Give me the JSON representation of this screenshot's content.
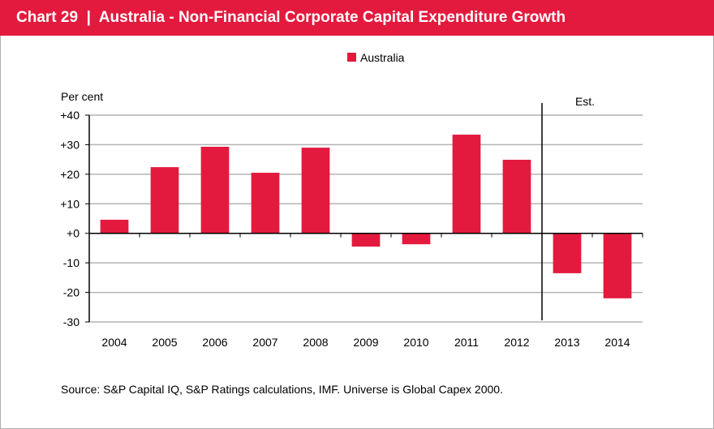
{
  "header": {
    "title": "Chart 29  |  Australia - Non-Financial Corporate Capital Expenditure Growth"
  },
  "chart_data": {
    "type": "bar",
    "title": "Australia - Non-Financial Corporate Capital Expenditure Growth",
    "ylabel": "Per cent",
    "xlabel": "",
    "categories": [
      "2004",
      "2005",
      "2006",
      "2007",
      "2008",
      "2009",
      "2010",
      "2011",
      "2012",
      "2013",
      "2014"
    ],
    "series": [
      {
        "name": "Australia",
        "values": [
          4.6,
          22.4,
          29.3,
          20.5,
          29.0,
          -4.5,
          -3.7,
          33.4,
          24.9,
          -13.5,
          -22.0
        ],
        "color": "#e31a3e"
      }
    ],
    "ylim": [
      -30,
      40
    ],
    "yticks": [
      40,
      30,
      20,
      10,
      0,
      -10,
      -20,
      -30
    ],
    "ytick_labels": [
      "+40",
      "+30",
      "+20",
      "+10",
      "+0",
      "-10",
      "-20",
      "-30"
    ],
    "grid": true,
    "legend": "top-center",
    "annotation": {
      "text": "Est.",
      "after_category": "2012"
    }
  },
  "source": "Source: S&P Capital IQ, S&P Ratings calculations, IMF. Universe is Global Capex 2000."
}
